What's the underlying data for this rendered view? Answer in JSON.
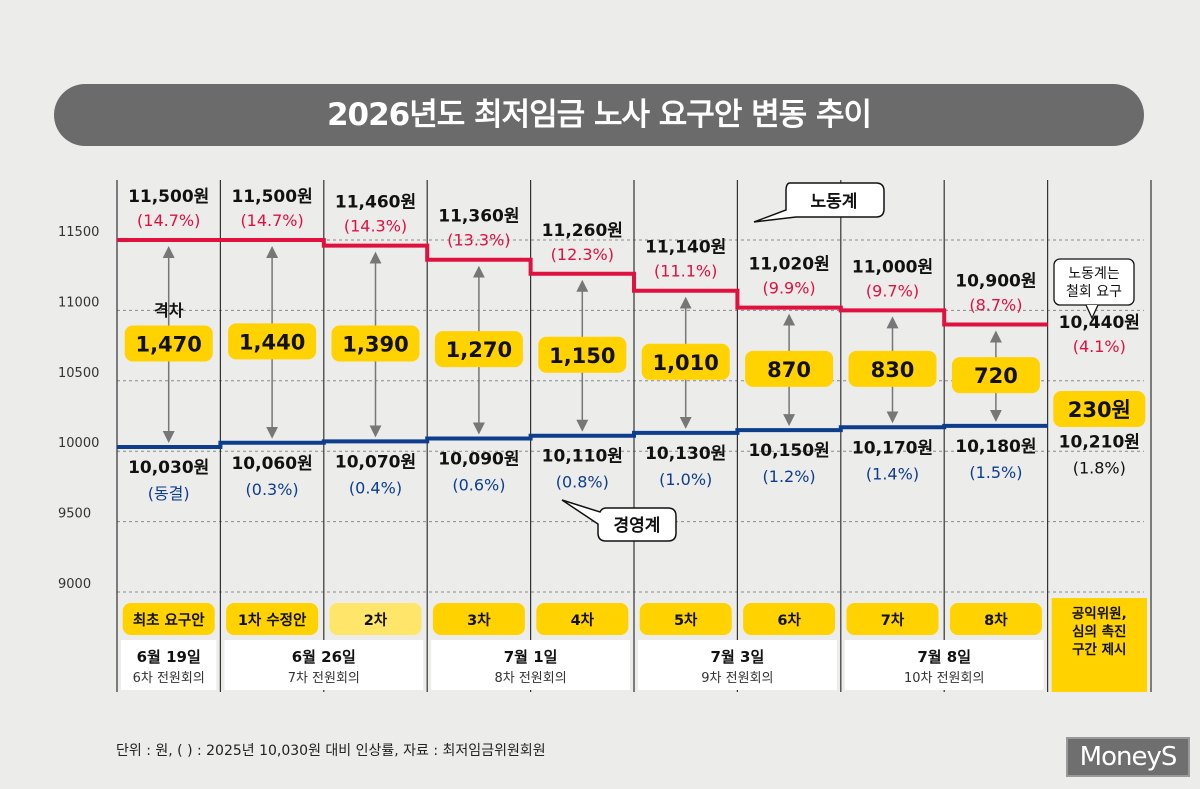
{
  "title": "2026년도 최저임금 노사 요구안 변동 추이",
  "footnote": "단위 : 원, ( ) : 2025년 10,030원 대비 인상률, 자료 : 최저임금위원회원",
  "logo": "MoneyS",
  "colors": {
    "labor": "#e0103f",
    "management": "#0d3d8c",
    "gap_box": "#ffd200",
    "title_bar": "#6b6b6b"
  },
  "annotations": {
    "labor_label": "노동계",
    "management_label": "경영계",
    "gap_label": "격차",
    "labor_withdraw": [
      "노동계는",
      "철회 요구"
    ]
  },
  "chart_data": {
    "type": "line",
    "title": "2026년도 최저임금 노사 요구안 변동 추이",
    "ylim": [
      9000,
      11500
    ],
    "yticks": [
      "11500",
      "11000",
      "10500",
      "10000",
      "9500",
      "9000"
    ],
    "grid": true,
    "categories": [
      "최초 요구안",
      "1차 수정안",
      "2차",
      "3차",
      "4차",
      "5차",
      "6차",
      "7차",
      "8차",
      "공익위원, 심의 촉진 구간 제시"
    ],
    "series": [
      {
        "name": "노동계",
        "values": [
          11500,
          11500,
          11460,
          11360,
          11260,
          11140,
          11020,
          11000,
          10900,
          10440
        ],
        "labels": [
          "11,500원",
          "11,500원",
          "11,460원",
          "11,360원",
          "11,260원",
          "11,140원",
          "11,020원",
          "11,000원",
          "10,900원",
          "10,440원"
        ],
        "pct": [
          "(14.7%)",
          "(14.7%)",
          "(14.3%)",
          "(13.3%)",
          "(12.3%)",
          "(11.1%)",
          "(9.9%)",
          "(9.7%)",
          "(8.7%)",
          "(4.1%)"
        ]
      },
      {
        "name": "경영계",
        "values": [
          10030,
          10060,
          10070,
          10090,
          10110,
          10130,
          10150,
          10170,
          10180,
          10210
        ],
        "labels": [
          "10,030원",
          "10,060원",
          "10,070원",
          "10,090원",
          "10,110원",
          "10,130원",
          "10,150원",
          "10,170원",
          "10,180원",
          "10,210원"
        ],
        "pct": [
          "(동결)",
          "(0.3%)",
          "(0.4%)",
          "(0.6%)",
          "(0.8%)",
          "(1.0%)",
          "(1.2%)",
          "(1.4%)",
          "(1.5%)",
          "(1.8%)"
        ]
      }
    ],
    "gaps": [
      "1,470",
      "1,440",
      "1,390",
      "1,270",
      "1,150",
      "1,010",
      "870",
      "830",
      "720",
      "230원"
    ],
    "meetings": [
      {
        "date": "6월 19일",
        "name": "6차 전원회의",
        "span": [
          0,
          0
        ]
      },
      {
        "date": "6월 26일",
        "name": "7차 전원회의",
        "span": [
          1,
          2
        ]
      },
      {
        "date": "7월 1일",
        "name": "8차 전원회의",
        "span": [
          3,
          4
        ]
      },
      {
        "date": "7월 3일",
        "name": "9차 전원회의",
        "span": [
          5,
          6
        ]
      },
      {
        "date": "7월 8일",
        "name": "10차 전원회의",
        "span": [
          7,
          8
        ]
      }
    ]
  }
}
